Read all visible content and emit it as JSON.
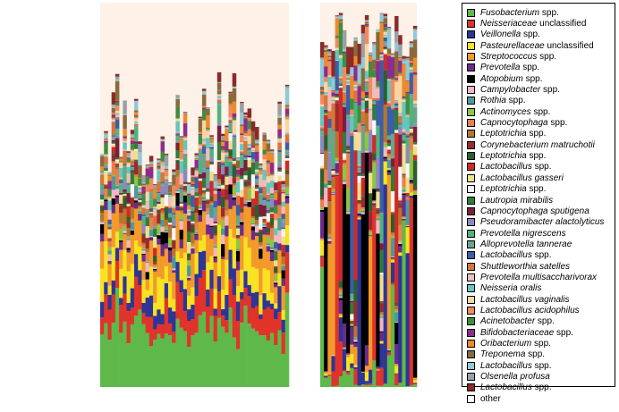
{
  "chart_data": {
    "type": "bar",
    "subtype": "stacked-relative-abundance",
    "title": "",
    "xlabel": "",
    "ylabel": "",
    "ylim": [
      0,
      1
    ],
    "background_color": "#fdf1e8",
    "legend_position": "right",
    "taxa": [
      {
        "italic": "Fusobacterium",
        "rest": " spp.",
        "color": "#5fb84a"
      },
      {
        "italic": "Neisseriaceae",
        "rest": " unclassified",
        "color": "#e0332a"
      },
      {
        "italic": "Veillonella",
        "rest": " spp.",
        "color": "#2f3596"
      },
      {
        "italic": "Pasteurellaceae",
        "rest": " unclassified",
        "color": "#f7e321"
      },
      {
        "italic": "Streptococcus",
        "rest": " spp.",
        "color": "#f39a2b"
      },
      {
        "italic": "Prevotella",
        "rest": " spp.",
        "color": "#6a2b8c"
      },
      {
        "italic": "Atopobium",
        "rest": " spp.",
        "color": "#000000"
      },
      {
        "italic": "Campylobacter",
        "rest": " spp.",
        "color": "#f4b6c2"
      },
      {
        "italic": "Rothia",
        "rest": " spp.",
        "color": "#4a9a9e"
      },
      {
        "italic": "Actinomyces",
        "rest": " spp.",
        "color": "#8ec63f"
      },
      {
        "italic": "Capnocytophaga",
        "rest": " spp.",
        "color": "#ea7f4e"
      },
      {
        "italic": "Leptotrichia",
        "rest": " spp.",
        "color": "#b5762e"
      },
      {
        "italic": "Corynebacterium matruchotii",
        "rest": "",
        "color": "#9b2a2e"
      },
      {
        "italic": "Leptotrichia",
        "rest": " spp.",
        "color": "#2e5e2e"
      },
      {
        "italic": "Lactobacillus",
        "rest": " spp.",
        "color": "#cf2a2a"
      },
      {
        "italic": "Lactobacillus gasseri",
        "rest": "",
        "color": "#efe08c"
      },
      {
        "italic": "Leptotrichia",
        "rest": " spp.",
        "color": "#f5f5ff"
      },
      {
        "italic": "Lautropia mirabilis",
        "rest": "",
        "color": "#2f7d3a"
      },
      {
        "italic": "Capnocytophaga sputigena",
        "rest": "",
        "color": "#7a1f3b"
      },
      {
        "italic": "Pseudoramibacter alactolyticus",
        "rest": "",
        "color": "#8d86c2"
      },
      {
        "italic": "Prevotella nigrescens",
        "rest": "",
        "color": "#4fb37c"
      },
      {
        "italic": "Alloprevotella tannerae",
        "rest": "",
        "color": "#6aa58a"
      },
      {
        "italic": "Lactobacillus",
        "rest": " spp.",
        "color": "#3a5fa8"
      },
      {
        "italic": "Shuttleworthia satelles",
        "rest": "",
        "color": "#d7753a"
      },
      {
        "italic": "Prevotella multisaccharivorax",
        "rest": "",
        "color": "#f2bcbc"
      },
      {
        "italic": "Neisseria oralis",
        "rest": "",
        "color": "#64c6bd"
      },
      {
        "italic": "Lactobacillus vaginalis",
        "rest": "",
        "color": "#f7d6a6"
      },
      {
        "italic": "Lactobacillus acidophilus",
        "rest": "",
        "color": "#f28a5c"
      },
      {
        "italic": "Acinetobacter",
        "rest": " spp.",
        "color": "#3e8e3e"
      },
      {
        "italic": "Bifidobacteriaceae",
        "rest": " spp.",
        "color": "#8e2c8e"
      },
      {
        "italic": "Oribacterium",
        "rest": " spp.",
        "color": "#ee8a2c"
      },
      {
        "italic": "Treponema",
        "rest": " spp.",
        "color": "#8a6a3a"
      },
      {
        "italic": "Lactobacillus",
        "rest": " spp.",
        "color": "#8fcad6"
      },
      {
        "italic": "Olsenella profusa",
        "rest": "",
        "color": "#9aa0a6"
      },
      {
        "italic": "Lactobacillus",
        "rest": " spp.",
        "color": "#8a2a2a"
      },
      {
        "italic": "",
        "rest": "other",
        "color": "#ffffff"
      }
    ],
    "panels": [
      {
        "name": "left",
        "n_samples": 50
      },
      {
        "name": "right",
        "n_samples": 26
      }
    ]
  }
}
